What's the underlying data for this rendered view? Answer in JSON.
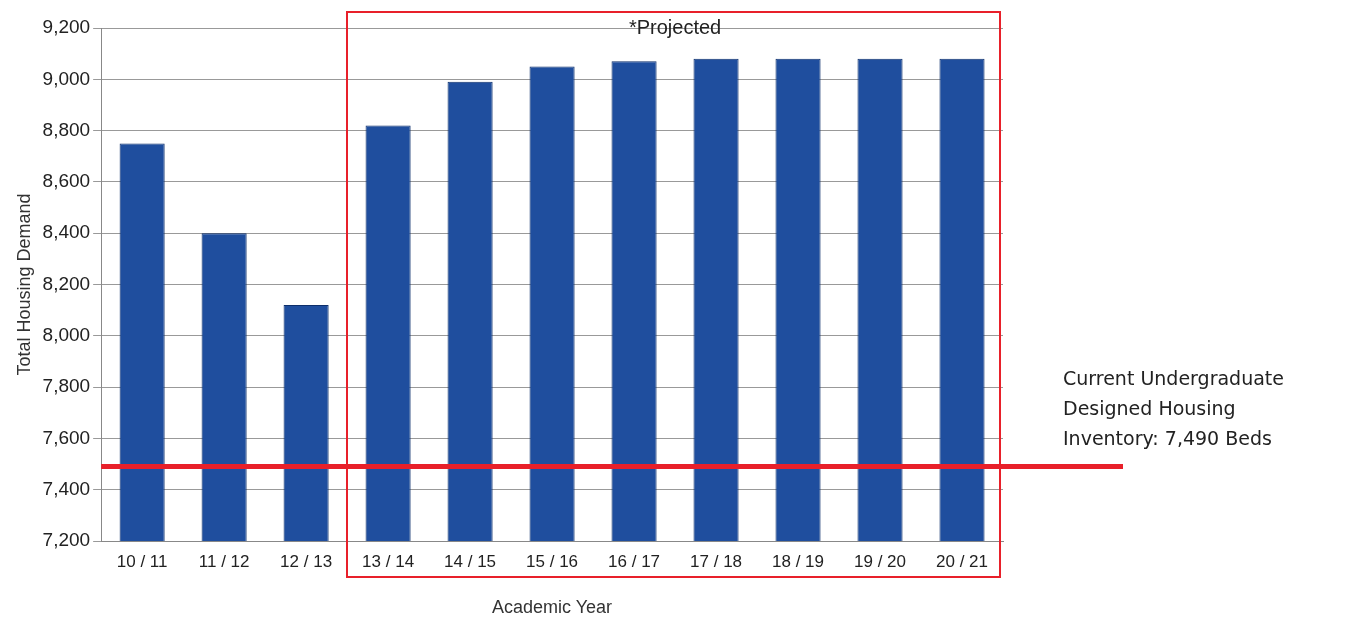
{
  "chart_data": {
    "type": "bar",
    "xlabel": "Academic Year",
    "ylabel": "Total Housing Demand",
    "categories": [
      "10 / 11",
      "11 / 12",
      "12 / 13",
      "13 / 14",
      "14 / 15",
      "15 / 16",
      "16 / 17",
      "17 / 18",
      "18 / 19",
      "19 / 20",
      "20 / 21"
    ],
    "values": [
      8750,
      8400,
      8120,
      8820,
      8990,
      9050,
      9070,
      9080,
      9080,
      9080,
      9080
    ],
    "color": "#1f4e9e",
    "ylim": [
      7200,
      9200
    ],
    "yticks": [
      {
        "value": 7200,
        "label": "7,200"
      },
      {
        "value": 7400,
        "label": "7,400"
      },
      {
        "value": 7600,
        "label": "7,600"
      },
      {
        "value": 7800,
        "label": "7,800"
      },
      {
        "value": 8000,
        "label": "8,000"
      },
      {
        "value": 8200,
        "label": "8,200"
      },
      {
        "value": 8400,
        "label": "8,400"
      },
      {
        "value": 8600,
        "label": "8,600"
      },
      {
        "value": 8800,
        "label": "8,800"
      },
      {
        "value": 9000,
        "label": "9,000"
      },
      {
        "value": 9200,
        "label": "9,200"
      }
    ],
    "grid": "y",
    "legend": false,
    "ref_lines": [
      {
        "axis": "y",
        "value": 7490,
        "label": "Current Undergraduate Designed Housing Inventory: 7,490 Beds",
        "color": "#e8202a"
      }
    ],
    "annotations": [
      "*Projected"
    ]
  }
}
